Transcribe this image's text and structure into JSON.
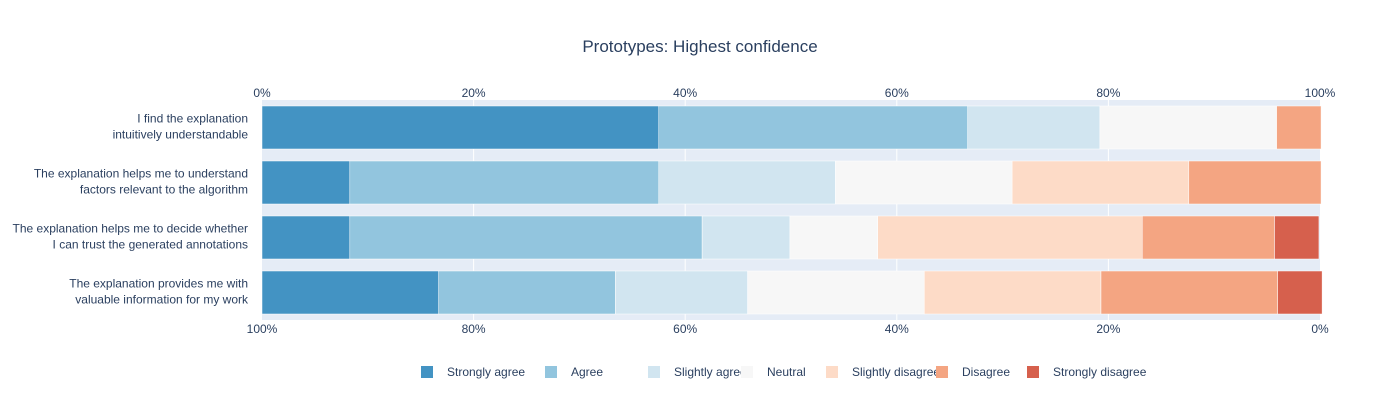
{
  "chart_data": {
    "type": "bar",
    "orientation": "horizontal",
    "stacked": true,
    "title": "Prototypes: Highest confidence",
    "xlabel": "",
    "ylabel": "",
    "xlim": [
      0,
      100
    ],
    "top_axis_ticks": [
      "0%",
      "20%",
      "40%",
      "60%",
      "80%",
      "100%"
    ],
    "bottom_axis_ticks": [
      "100%",
      "80%",
      "60%",
      "40%",
      "20%",
      "0%"
    ],
    "grid": true,
    "legend_position": "bottom-center",
    "categories": [
      [
        "I find the explanation",
        "intuitively understandable"
      ],
      [
        "The explanation helps me to understand",
        "factors relevant to the algorithm"
      ],
      [
        "The explanation helps me to decide whether",
        "I can trust the generated annotations"
      ],
      [
        "The explanation provides me with",
        "valuable information for my work"
      ]
    ],
    "series": [
      {
        "name": "Strongly agree",
        "color": "#4393c3",
        "values": [
          37.5,
          8.3,
          8.3,
          16.7
        ]
      },
      {
        "name": "Agree",
        "color": "#92c5de",
        "values": [
          29.2,
          29.2,
          33.3,
          16.7
        ]
      },
      {
        "name": "Slightly agree",
        "color": "#d1e5f0",
        "values": [
          12.5,
          16.7,
          8.3,
          12.5
        ]
      },
      {
        "name": "Neutral",
        "color": "#f7f7f7",
        "values": [
          16.7,
          16.7,
          8.3,
          16.7
        ]
      },
      {
        "name": "Slightly disagree",
        "color": "#fddbc7",
        "values": [
          0,
          16.7,
          25.0,
          16.7
        ]
      },
      {
        "name": "Disagree",
        "color": "#f4a582",
        "values": [
          4.2,
          12.5,
          12.5,
          16.7
        ]
      },
      {
        "name": "Strongly disagree",
        "color": "#d6604d",
        "values": [
          0,
          0,
          4.2,
          4.2
        ]
      }
    ]
  }
}
